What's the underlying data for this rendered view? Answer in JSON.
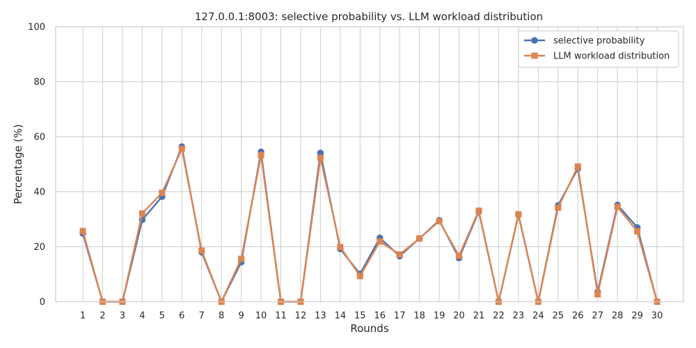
{
  "chart_data": {
    "type": "line",
    "title": "127.0.0.1:8003: selective probability vs. LLM workload distribution",
    "xlabel": "Rounds",
    "ylabel": "Percentage (%)",
    "ylim": [
      0,
      100
    ],
    "yticks": [
      0,
      20,
      40,
      60,
      80,
      100
    ],
    "x": [
      1,
      2,
      3,
      4,
      5,
      6,
      7,
      8,
      9,
      10,
      11,
      12,
      13,
      14,
      15,
      16,
      17,
      18,
      19,
      20,
      21,
      22,
      23,
      24,
      25,
      26,
      27,
      28,
      29,
      30
    ],
    "grid": true,
    "legend_position": "top-right",
    "series": [
      {
        "name": "selective probability",
        "color": "#4c72b0",
        "marker": "circle",
        "values": [
          24.8,
          0,
          0,
          29.8,
          38.2,
          56.4,
          18.0,
          0,
          14.4,
          54.5,
          0,
          0,
          54.1,
          19.2,
          10.1,
          23.2,
          16.6,
          23.0,
          29.6,
          15.9,
          32.8,
          0,
          31.6,
          0,
          35.0,
          48.4,
          3.5,
          35.2,
          27.0,
          0
        ]
      },
      {
        "name": "LLM workload distribution",
        "color": "#dd8452",
        "marker": "square",
        "values": [
          25.7,
          0,
          0,
          32.1,
          39.6,
          55.6,
          18.6,
          0,
          15.6,
          53.3,
          0,
          0,
          52.3,
          19.9,
          9.3,
          21.9,
          17.2,
          23.0,
          29.3,
          16.7,
          33.1,
          0,
          31.8,
          0,
          34.2,
          49.2,
          2.7,
          34.5,
          25.6,
          0
        ]
      }
    ]
  }
}
